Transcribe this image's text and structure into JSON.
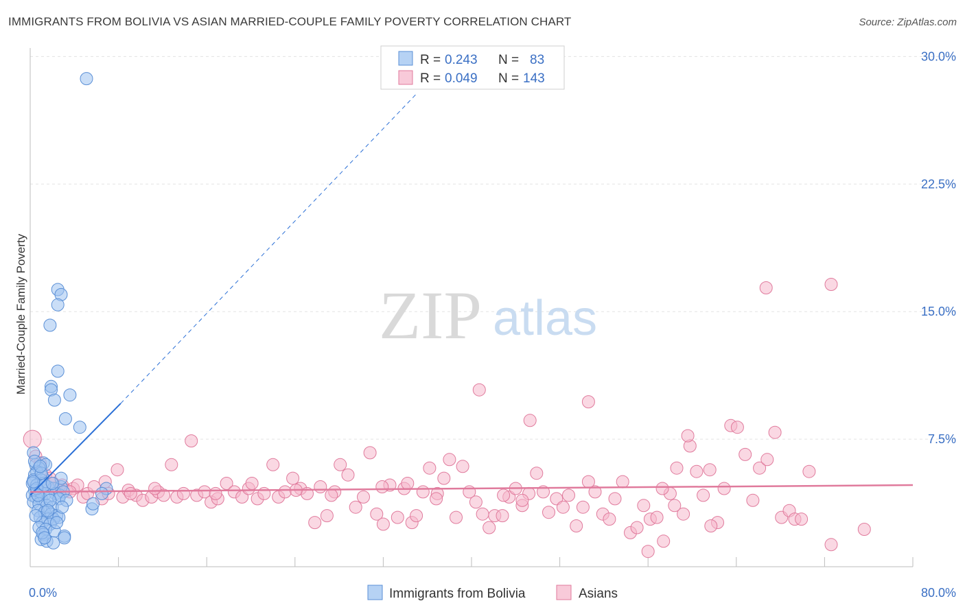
{
  "title": "IMMIGRANTS FROM BOLIVIA VS ASIAN MARRIED-COUPLE FAMILY POVERTY CORRELATION CHART",
  "source": "Source: ZipAtlas.com",
  "watermark": {
    "zip": "ZIP",
    "atlas": "atlas"
  },
  "legend": {
    "rows": [
      {
        "r_label": "R =",
        "r_value": "0.243",
        "n_label": "N =",
        "n_value": "83",
        "color": "#9ec3f0"
      },
      {
        "r_label": "R =",
        "r_value": "0.049",
        "n_label": "N =",
        "n_value": "143",
        "color": "#f5b8cc"
      }
    ]
  },
  "bottom_legend": [
    {
      "label": "Immigrants from Bolivia",
      "color": "#9ec3f0"
    },
    {
      "label": "Asians",
      "color": "#f5b8cc"
    }
  ],
  "chart_data": {
    "type": "scatter",
    "title": "IMMIGRANTS FROM BOLIVIA VS ASIAN MARRIED-COUPLE FAMILY POVERTY CORRELATION CHART",
    "xlabel": "",
    "ylabel": "Married-Couple Family Poverty",
    "xlim": [
      0,
      80
    ],
    "ylim": [
      0,
      30.5
    ],
    "x_tick_labels": [
      "0.0%",
      "80.0%"
    ],
    "y_ticks": [
      7.5,
      15.0,
      22.5,
      30.0
    ],
    "y_tick_labels": [
      "7.5%",
      "15.0%",
      "22.5%",
      "30.0%"
    ],
    "grid": true,
    "series": [
      {
        "name": "Immigrants from Bolivia",
        "color": "#9ec3f0",
        "edge": "#5a8fd6",
        "trend": {
          "x0": 0,
          "y0": 4.2,
          "x1": 8.2,
          "y1": 9.6,
          "dashed_to_x": 35,
          "dashed_to_y": 27.8,
          "color": "#2a6fd6"
        },
        "points": [
          [
            5.1,
            28.7
          ],
          [
            2.5,
            16.3
          ],
          [
            2.8,
            16.0
          ],
          [
            2.5,
            15.4
          ],
          [
            1.8,
            14.2
          ],
          [
            2.5,
            11.5
          ],
          [
            1.9,
            10.6
          ],
          [
            3.6,
            10.1
          ],
          [
            1.9,
            10.4
          ],
          [
            2.2,
            9.8
          ],
          [
            3.2,
            8.7
          ],
          [
            4.5,
            8.2
          ],
          [
            0.3,
            6.7
          ],
          [
            0.5,
            6.0
          ],
          [
            1.2,
            6.1
          ],
          [
            1.4,
            6.0
          ],
          [
            0.8,
            5.8
          ],
          [
            0.6,
            5.6
          ],
          [
            0.4,
            5.4
          ],
          [
            0.3,
            5.1
          ],
          [
            1.1,
            5.3
          ],
          [
            1.0,
            5.1
          ],
          [
            0.2,
            4.9
          ],
          [
            0.6,
            4.8
          ],
          [
            1.2,
            4.9
          ],
          [
            1.6,
            4.7
          ],
          [
            2.1,
            4.6
          ],
          [
            2.8,
            4.7
          ],
          [
            0.4,
            4.5
          ],
          [
            0.9,
            4.4
          ],
          [
            1.4,
            4.3
          ],
          [
            2.3,
            4.3
          ],
          [
            2.7,
            4.2
          ],
          [
            3.0,
            4.4
          ],
          [
            0.2,
            4.2
          ],
          [
            0.5,
            4.1
          ],
          [
            1.0,
            4.0
          ],
          [
            1.7,
            4.1
          ],
          [
            2.6,
            4.0
          ],
          [
            3.3,
            3.9
          ],
          [
            0.3,
            3.8
          ],
          [
            0.8,
            3.7
          ],
          [
            1.5,
            3.6
          ],
          [
            2.0,
            3.5
          ],
          [
            0.7,
            3.3
          ],
          [
            1.3,
            3.2
          ],
          [
            1.9,
            3.1
          ],
          [
            2.4,
            3.0
          ],
          [
            0.9,
            2.9
          ],
          [
            1.6,
            2.8
          ],
          [
            2.1,
            2.8
          ],
          [
            2.6,
            2.9
          ],
          [
            1.1,
            2.6
          ],
          [
            1.8,
            2.5
          ],
          [
            0.8,
            2.3
          ],
          [
            1.4,
            2.2
          ],
          [
            2.2,
            2.1
          ],
          [
            1.2,
            1.9
          ],
          [
            3.1,
            1.8
          ],
          [
            1.0,
            1.6
          ],
          [
            1.5,
            1.5
          ],
          [
            2.1,
            1.4
          ],
          [
            3.1,
            1.7
          ],
          [
            5.6,
            3.4
          ],
          [
            6.9,
            4.6
          ],
          [
            6.5,
            4.3
          ],
          [
            5.7,
            3.7
          ],
          [
            0.4,
            6.2
          ],
          [
            1.0,
            5.5
          ],
          [
            2.8,
            5.2
          ],
          [
            0.6,
            4.6
          ],
          [
            1.3,
            4.8
          ],
          [
            1.8,
            3.9
          ],
          [
            0.5,
            3.0
          ],
          [
            2.9,
            3.5
          ],
          [
            1.1,
            2.0
          ],
          [
            0.3,
            5.0
          ],
          [
            0.9,
            5.9
          ],
          [
            2.0,
            4.9
          ],
          [
            0.7,
            4.2
          ],
          [
            1.6,
            3.3
          ],
          [
            2.4,
            2.6
          ],
          [
            1.3,
            1.7
          ]
        ]
      },
      {
        "name": "Asians",
        "color": "#f5b8cc",
        "edge": "#e07a9c",
        "trend": {
          "x0": 0,
          "y0": 4.4,
          "x1": 80,
          "y1": 4.8,
          "color": "#e07a9c"
        },
        "points": [
          [
            0.2,
            7.5
          ],
          [
            0.5,
            6.5
          ],
          [
            0.9,
            6.1
          ],
          [
            1.4,
            5.4
          ],
          [
            1.8,
            5.2
          ],
          [
            2.1,
            4.9
          ],
          [
            2.4,
            4.6
          ],
          [
            2.9,
            4.8
          ],
          [
            3.3,
            4.5
          ],
          [
            3.9,
            4.6
          ],
          [
            4.3,
            4.8
          ],
          [
            4.8,
            4.1
          ],
          [
            5.2,
            4.3
          ],
          [
            5.8,
            4.7
          ],
          [
            6.5,
            4.0
          ],
          [
            7.1,
            4.3
          ],
          [
            7.9,
            5.7
          ],
          [
            8.4,
            4.1
          ],
          [
            8.9,
            4.5
          ],
          [
            9.6,
            4.2
          ],
          [
            10.2,
            3.9
          ],
          [
            11.0,
            4.1
          ],
          [
            11.6,
            4.4
          ],
          [
            12.1,
            4.2
          ],
          [
            12.8,
            6.0
          ],
          [
            13.3,
            4.1
          ],
          [
            13.9,
            4.3
          ],
          [
            14.6,
            7.4
          ],
          [
            15.1,
            4.2
          ],
          [
            15.8,
            4.4
          ],
          [
            16.4,
            3.8
          ],
          [
            17.0,
            4.0
          ],
          [
            17.8,
            4.9
          ],
          [
            18.5,
            4.4
          ],
          [
            19.2,
            4.1
          ],
          [
            19.8,
            4.6
          ],
          [
            20.6,
            4.0
          ],
          [
            21.2,
            4.3
          ],
          [
            22.0,
            6.0
          ],
          [
            22.5,
            4.1
          ],
          [
            23.1,
            4.4
          ],
          [
            23.8,
            5.2
          ],
          [
            24.5,
            4.6
          ],
          [
            25.1,
            4.3
          ],
          [
            25.8,
            2.6
          ],
          [
            26.3,
            4.7
          ],
          [
            26.9,
            3.0
          ],
          [
            27.6,
            4.4
          ],
          [
            28.1,
            6.0
          ],
          [
            28.8,
            5.4
          ],
          [
            29.5,
            3.5
          ],
          [
            30.2,
            4.1
          ],
          [
            30.8,
            6.7
          ],
          [
            31.4,
            3.1
          ],
          [
            32.0,
            2.5
          ],
          [
            32.6,
            4.8
          ],
          [
            33.3,
            2.9
          ],
          [
            33.9,
            4.6
          ],
          [
            34.6,
            2.6
          ],
          [
            35.0,
            3.0
          ],
          [
            35.6,
            4.4
          ],
          [
            36.2,
            5.8
          ],
          [
            36.9,
            4.3
          ],
          [
            37.5,
            5.2
          ],
          [
            38.0,
            6.3
          ],
          [
            38.6,
            2.9
          ],
          [
            39.2,
            5.9
          ],
          [
            39.8,
            4.4
          ],
          [
            40.4,
            3.8
          ],
          [
            41.0,
            3.1
          ],
          [
            41.6,
            2.3
          ],
          [
            42.1,
            3.0
          ],
          [
            42.8,
            3.0
          ],
          [
            43.4,
            4.1
          ],
          [
            44.0,
            4.6
          ],
          [
            44.6,
            3.6
          ],
          [
            45.2,
            4.3
          ],
          [
            45.9,
            5.5
          ],
          [
            46.5,
            4.4
          ],
          [
            47.0,
            3.2
          ],
          [
            47.7,
            4.0
          ],
          [
            48.3,
            3.5
          ],
          [
            48.8,
            4.2
          ],
          [
            49.5,
            2.4
          ],
          [
            50.1,
            3.5
          ],
          [
            50.6,
            5.0
          ],
          [
            51.2,
            4.4
          ],
          [
            51.9,
            3.1
          ],
          [
            52.5,
            2.8
          ],
          [
            53.0,
            4.0
          ],
          [
            53.7,
            5.0
          ],
          [
            54.4,
            2.0
          ],
          [
            55.0,
            2.3
          ],
          [
            55.6,
            3.6
          ],
          [
            56.2,
            2.8
          ],
          [
            56.8,
            2.9
          ],
          [
            57.4,
            1.5
          ],
          [
            58.0,
            4.3
          ],
          [
            58.6,
            5.8
          ],
          [
            59.2,
            3.1
          ],
          [
            59.8,
            7.1
          ],
          [
            60.4,
            5.6
          ],
          [
            61.0,
            4.2
          ],
          [
            61.6,
            5.7
          ],
          [
            62.3,
            2.6
          ],
          [
            62.9,
            4.6
          ],
          [
            63.5,
            8.3
          ],
          [
            64.1,
            8.2
          ],
          [
            64.8,
            6.6
          ],
          [
            65.5,
            3.9
          ],
          [
            66.1,
            5.8
          ],
          [
            66.8,
            6.3
          ],
          [
            67.5,
            7.9
          ],
          [
            68.1,
            2.9
          ],
          [
            68.8,
            3.3
          ],
          [
            69.3,
            2.8
          ],
          [
            69.9,
            2.8
          ],
          [
            70.6,
            5.6
          ],
          [
            72.6,
            1.3
          ],
          [
            75.6,
            2.2
          ],
          [
            40.7,
            10.4
          ],
          [
            50.6,
            9.7
          ],
          [
            45.3,
            8.6
          ],
          [
            66.7,
            16.4
          ],
          [
            72.6,
            16.6
          ],
          [
            59.6,
            7.7
          ],
          [
            42.9,
            4.2
          ],
          [
            44.6,
            3.9
          ],
          [
            57.3,
            4.6
          ],
          [
            56.0,
            0.9
          ],
          [
            58.4,
            3.6
          ],
          [
            61.7,
            2.4
          ],
          [
            3.6,
            4.4
          ],
          [
            6.8,
            5.0
          ],
          [
            9.1,
            4.3
          ],
          [
            11.3,
            4.6
          ],
          [
            16.8,
            4.3
          ],
          [
            20.1,
            4.9
          ],
          [
            24.1,
            4.5
          ],
          [
            27.3,
            4.2
          ],
          [
            31.9,
            4.7
          ],
          [
            34.2,
            4.9
          ],
          [
            36.8,
            4.0
          ]
        ]
      }
    ]
  }
}
